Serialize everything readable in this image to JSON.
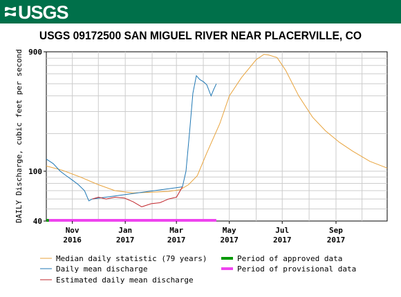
{
  "header": {
    "agency_logo_text": "USGS"
  },
  "chart_data": {
    "type": "line",
    "title": "USGS 09172500 SAN MIGUEL RIVER NEAR PLACERVILLE, CO",
    "ylabel": "DAILY Discharge, cubic feet per second",
    "xlabel": "",
    "y_scale": "log",
    "ylim": [
      40,
      900
    ],
    "y_ticks": [
      {
        "value": 40,
        "label": "40"
      },
      {
        "value": 100,
        "label": "100"
      },
      {
        "value": 900,
        "label": "900"
      }
    ],
    "xlim": [
      "2016-10-02",
      "2017-10-30"
    ],
    "x_ticks": [
      {
        "date": "2016-11-01",
        "label": [
          "Nov",
          "2016"
        ]
      },
      {
        "date": "2017-01-01",
        "label": [
          "Jan",
          "2017"
        ]
      },
      {
        "date": "2017-03-01",
        "label": [
          "Mar",
          "2017"
        ]
      },
      {
        "date": "2017-05-01",
        "label": [
          "May",
          "2017"
        ]
      },
      {
        "date": "2017-07-01",
        "label": [
          "Jul",
          "2017"
        ]
      },
      {
        "date": "2017-09-01",
        "label": [
          "Sep",
          "2017"
        ]
      }
    ],
    "grid": true,
    "legend_position": "bottom",
    "series": [
      {
        "name": "Median daily statistic (79 years)",
        "color": "#e8a33c",
        "x": [
          "2016-10-02",
          "2016-10-20",
          "2016-11-10",
          "2016-12-01",
          "2016-12-20",
          "2017-01-10",
          "2017-02-01",
          "2017-02-20",
          "2017-03-05",
          "2017-03-15",
          "2017-03-25",
          "2017-04-05",
          "2017-04-20",
          "2017-05-01",
          "2017-05-15",
          "2017-06-01",
          "2017-06-10",
          "2017-06-15",
          "2017-06-25",
          "2017-07-05",
          "2017-07-20",
          "2017-08-05",
          "2017-08-20",
          "2017-09-05",
          "2017-09-20",
          "2017-10-10",
          "2017-10-30"
        ],
        "y": [
          110,
          102,
          90,
          78,
          70,
          67,
          68,
          69,
          71,
          78,
          92,
          140,
          240,
          400,
          560,
          780,
          860,
          850,
          810,
          640,
          400,
          270,
          210,
          170,
          145,
          120,
          106
        ]
      },
      {
        "name": "Daily mean discharge",
        "color": "#1f77b4",
        "x": [
          "2016-10-02",
          "2016-10-10",
          "2016-10-18",
          "2016-10-25",
          "2016-11-01",
          "2016-11-08",
          "2016-11-15",
          "2016-11-20",
          "2016-11-24",
          "2017-03-08",
          "2017-03-12",
          "2017-03-16",
          "2017-03-20",
          "2017-03-24",
          "2017-03-28",
          "2017-04-01",
          "2017-04-05",
          "2017-04-10",
          "2017-04-13",
          "2017-04-16"
        ],
        "y": [
          125,
          115,
          100,
          92,
          85,
          78,
          70,
          58,
          60,
          75,
          100,
          200,
          420,
          580,
          540,
          520,
          490,
          400,
          450,
          500
        ]
      },
      {
        "name": "Estimated daily mean discharge",
        "color": "#c1272d",
        "x": [
          "2016-11-24",
          "2016-12-01",
          "2016-12-10",
          "2016-12-20",
          "2016-12-31",
          "2017-01-10",
          "2017-01-20",
          "2017-01-31",
          "2017-02-10",
          "2017-02-20",
          "2017-03-01",
          "2017-03-08"
        ],
        "y": [
          60,
          62,
          60,
          62,
          61,
          57,
          52,
          55,
          56,
          60,
          62,
          75
        ]
      },
      {
        "name": "Period of approved data",
        "color": "#009900",
        "x": [
          "2016-10-02",
          "2016-10-05"
        ]
      },
      {
        "name": "Period of provisional data",
        "color": "#ee44ee",
        "x": [
          "2016-10-05",
          "2017-04-16"
        ]
      }
    ]
  }
}
